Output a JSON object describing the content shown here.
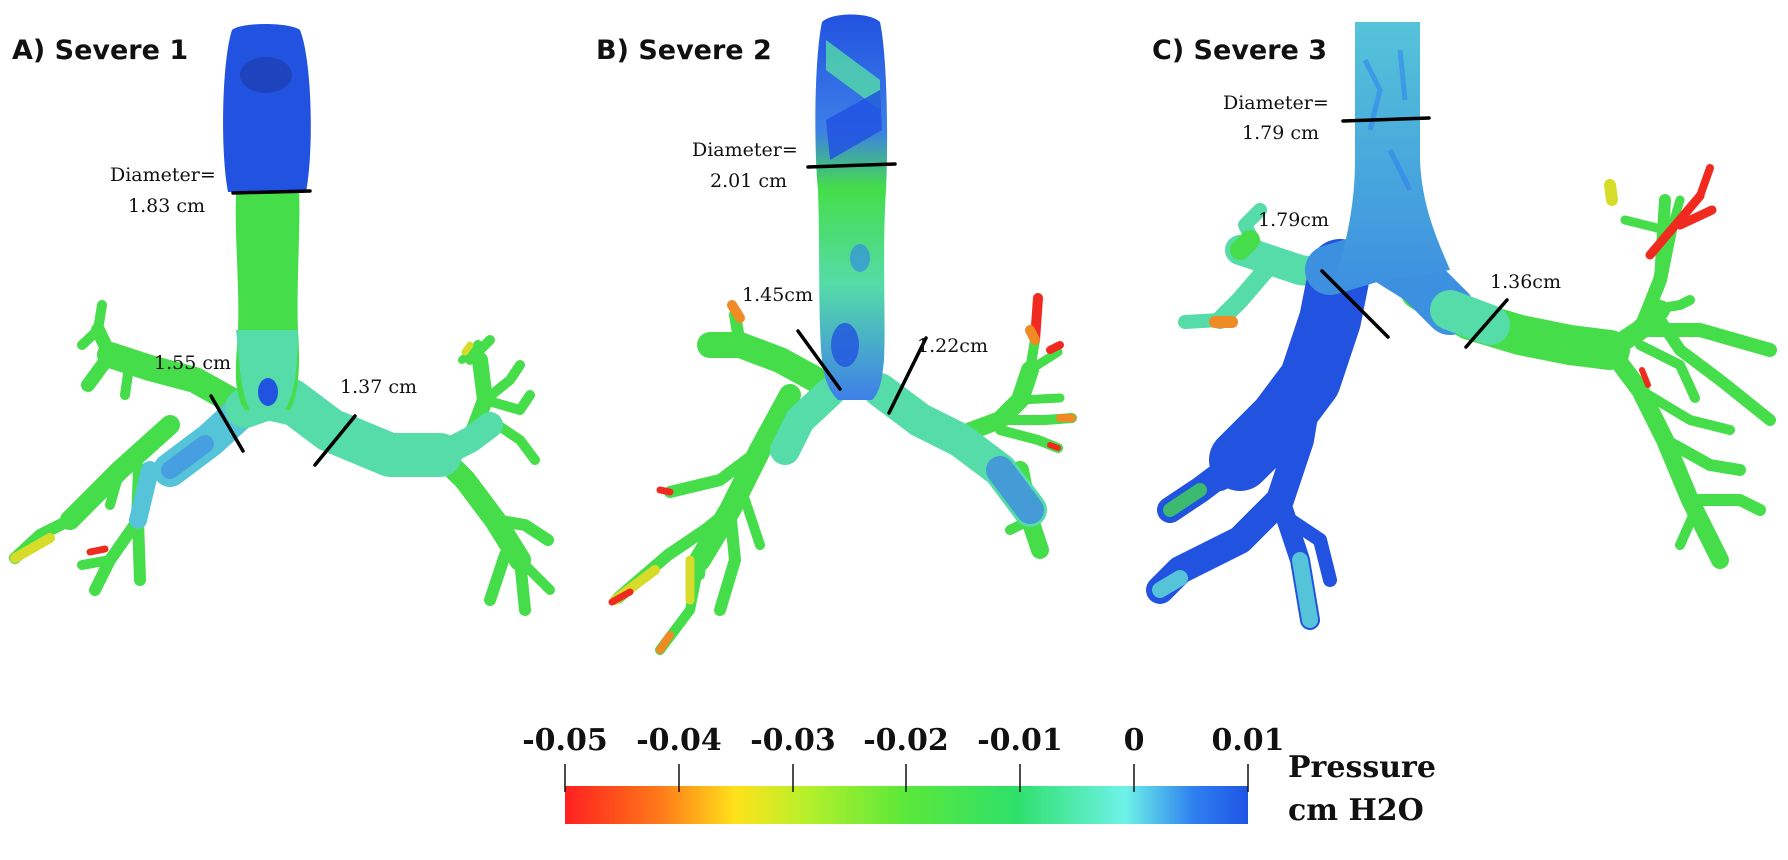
{
  "panels": [
    {
      "title": "A) Severe 1",
      "trachea_label": [
        "Diameter=",
        "1.83 cm"
      ],
      "left_bronchus_label": "1.55 cm",
      "right_bronchus_label": "1.37 cm"
    },
    {
      "title": "B) Severe 2",
      "trachea_label": [
        "Diameter=",
        "2.01 cm"
      ],
      "left_bronchus_label": "1.45cm",
      "right_bronchus_label": "1.22cm"
    },
    {
      "title": "C) Severe 3",
      "trachea_label": [
        "Diameter=",
        "1.79 cm"
      ],
      "left_bronchus_label": "1.79cm",
      "right_bronchus_label": "1.36cm"
    }
  ],
  "colorbar": {
    "ticks": [
      "-0.05",
      "-0.04",
      "-0.03",
      "-0.02",
      "-0.01",
      "0",
      "0.01"
    ],
    "title_line1": "Pressure",
    "title_line2": "cm H2O",
    "colors": [
      "#ff2020",
      "#ff7a1a",
      "#ffe21a",
      "#b8f02a",
      "#5ae83a",
      "#2ee06a",
      "#6ef3e8",
      "#2f80f0",
      "#1f55e6"
    ]
  },
  "airway_colors": {
    "deep_blue": "#2152e0",
    "blue": "#3d7fe8",
    "light_blue": "#55c4d8",
    "cyan_green": "#55dca8",
    "green": "#45dd4a",
    "yellow": "#d7dc2a",
    "orange": "#f08a24",
    "red": "#f02a1e"
  }
}
